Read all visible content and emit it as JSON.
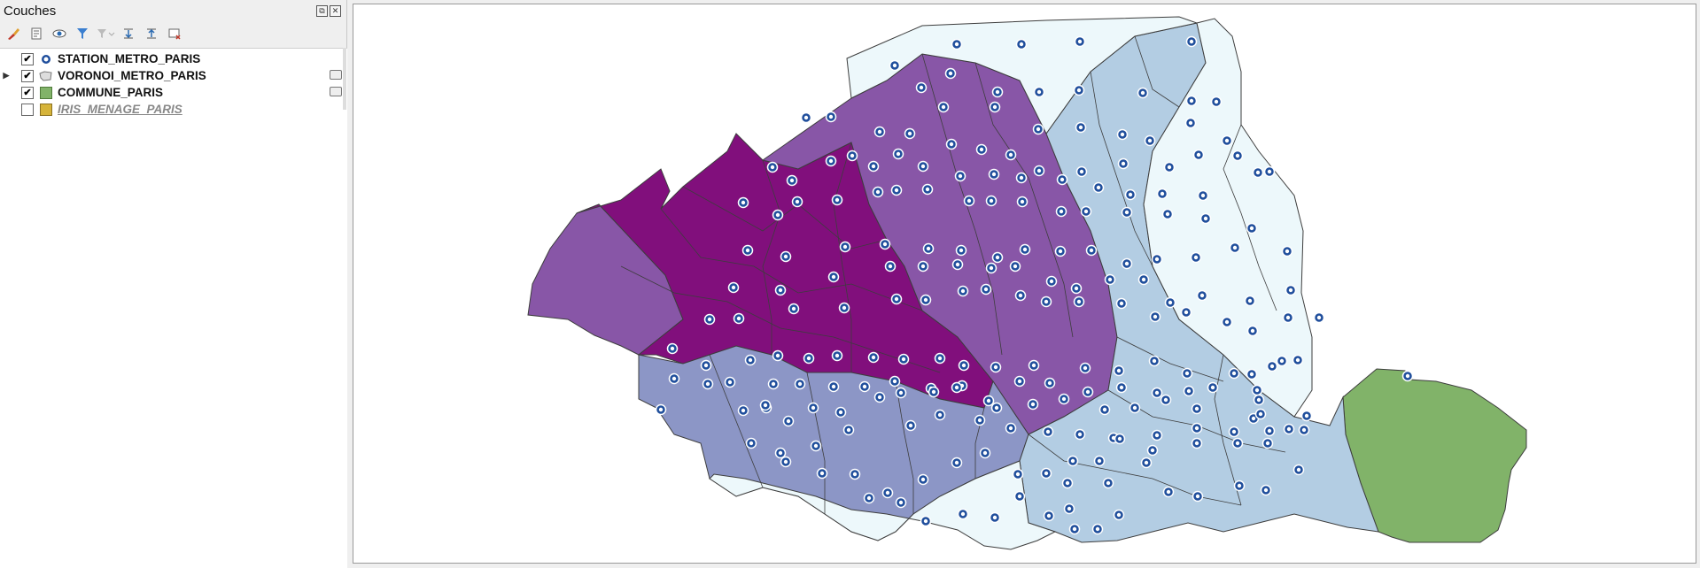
{
  "panel": {
    "title": "Couches",
    "toolbar_icons": [
      "paintbrush-icon",
      "add-group-icon",
      "eye-icon",
      "filter-icon",
      "filter-expression-icon",
      "expand-all-icon",
      "collapse-all-icon",
      "remove-layer-icon"
    ]
  },
  "layers": [
    {
      "label": "STATION_METRO_PARIS",
      "checked": true,
      "symbol": "point-circle-icon"
    },
    {
      "label": "VORONOI_METRO_PARIS",
      "checked": true,
      "symbol": "polygon-icon"
    },
    {
      "label": "COMMUNE_PARIS",
      "checked": true,
      "symbol": "green-fill-icon",
      "color": "#81b369"
    },
    {
      "label": "IRIS_MENAGE_PARIS",
      "checked": false,
      "symbol": "yellow-fill-icon",
      "color": "#d6b43a"
    }
  ],
  "colors": {
    "dark_purple": "#810f7c",
    "purple": "#8856a7",
    "mid_purple": "#8c96c6",
    "light_blue": "#b3cde3",
    "very_light": "#edf8fb",
    "commune_green": "#81b369",
    "station_blue": "#1f4e9c"
  }
}
